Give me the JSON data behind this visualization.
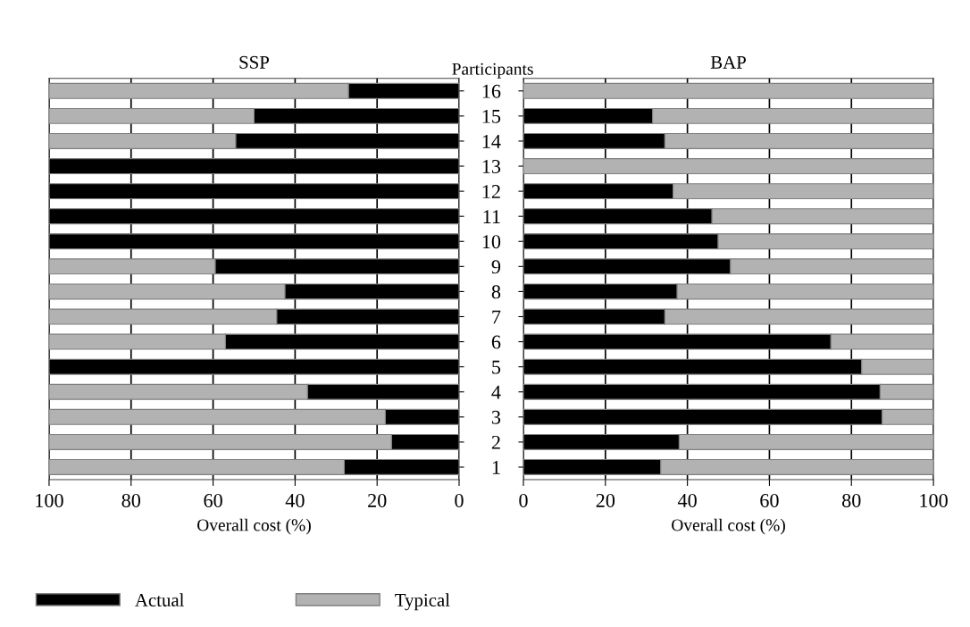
{
  "chart_data": [
    {
      "type": "bar",
      "orientation": "horizontal",
      "stacked": true,
      "title": "SSP",
      "xlabel": "Overall cost (%)",
      "xlim": [
        100,
        0
      ],
      "xticks": [
        100,
        80,
        60,
        40,
        20,
        0
      ],
      "grid": "x",
      "legend": "bottom",
      "tick_labels": "x",
      "categories": [
        "16",
        "15",
        "14",
        "13",
        "12",
        "11",
        "10",
        "9",
        "8",
        "7",
        "6",
        "5",
        "4",
        "3",
        "2",
        "1"
      ],
      "series": [
        {
          "name": "Actual",
          "color": "#000000",
          "values": [
            27,
            50,
            54.5,
            100,
            100,
            100,
            100,
            59.5,
            42.5,
            44.5,
            57,
            100,
            37,
            18,
            16.5,
            28
          ]
        },
        {
          "name": "Typical",
          "color": "#b2b2b2",
          "values": [
            73,
            50,
            45.5,
            0,
            0,
            0,
            0,
            40.5,
            57.5,
            55.5,
            43,
            0,
            63,
            82,
            83.5,
            72
          ]
        }
      ]
    },
    {
      "type": "bar",
      "orientation": "horizontal",
      "stacked": true,
      "title": "BAP",
      "xlabel": "Overall cost (%)",
      "ylabel": "Participants",
      "xlim": [
        0,
        100
      ],
      "xticks": [
        0,
        20,
        40,
        60,
        80,
        100
      ],
      "grid": "x",
      "categories": [
        "16",
        "15",
        "14",
        "13",
        "12",
        "11",
        "10",
        "9",
        "8",
        "7",
        "6",
        "5",
        "4",
        "3",
        "2",
        "1"
      ],
      "series": [
        {
          "color": "#000000",
          "values": [
            0,
            31.5,
            34.5,
            0,
            36.5,
            46,
            47.5,
            50.5,
            37.5,
            34.5,
            75,
            82.5,
            87,
            87.5,
            38,
            33.5
          ]
        },
        {
          "color": "#b2b2b2",
          "values": [
            100,
            68.5,
            65.5,
            100,
            63.5,
            54,
            52.5,
            49.5,
            62.5,
            65.5,
            25,
            17.5,
            13,
            12.5,
            62,
            66.5
          ]
        }
      ]
    }
  ]
}
